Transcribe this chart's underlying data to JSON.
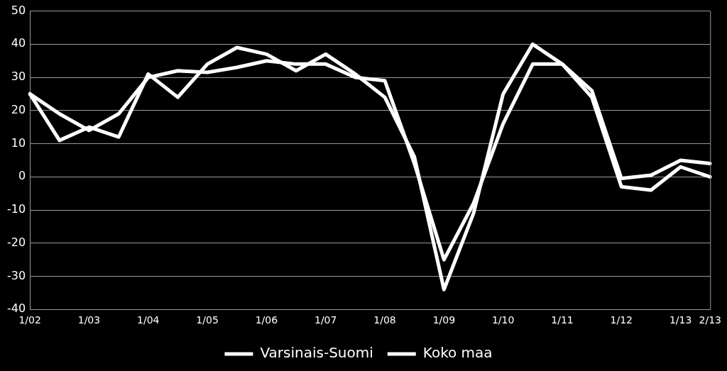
{
  "chart_data": {
    "type": "line",
    "categories": [
      "1/02",
      null,
      "1/03",
      null,
      "1/04",
      null,
      "1/05",
      null,
      "1/06",
      null,
      "1/07",
      null,
      "1/08",
      null,
      "1/09",
      null,
      "1/10",
      null,
      "1/11",
      null,
      "1/12",
      null,
      "1/13",
      "2/13"
    ],
    "series": [
      {
        "name": "Varsinais-Suomi",
        "color": "#ffffff",
        "values": [
          25,
          11,
          15,
          12,
          31,
          24,
          34,
          39,
          37,
          32,
          37,
          31,
          24,
          6,
          -34,
          -11,
          25,
          40,
          34,
          24,
          -3,
          -4,
          3,
          0
        ]
      },
      {
        "name": "Koko maa",
        "color": "#ffffff",
        "values": [
          25,
          19,
          14,
          19,
          30,
          32,
          31.5,
          33,
          35,
          34,
          34,
          30,
          29,
          4,
          -25,
          -8,
          16,
          34,
          34,
          26,
          -0.5,
          0.5,
          5,
          4
        ]
      }
    ],
    "ylim": [
      -40,
      50
    ],
    "yticks": [
      -40,
      -30,
      -20,
      -10,
      0,
      10,
      20,
      30,
      40,
      50
    ],
    "grid": "y",
    "legend": "bottom",
    "marker": "none",
    "line_style": "solid"
  }
}
